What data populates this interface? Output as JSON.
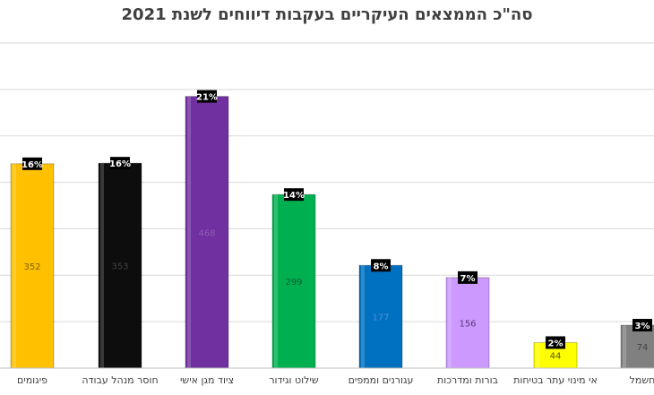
{
  "chart_data": {
    "type": "bar",
    "title": "סה\"כ הממצאים העיקריים בעקבות דיווחים לשנת 2021",
    "xlabel": "",
    "ylabel": "",
    "grid": true,
    "legend": "none",
    "categories": [
      "פיגומים",
      "חוסר מנהל עבודה",
      "ציוד מגן אישי",
      "שילוט וגידור",
      "עגורנים וממפים",
      "בורות ומדרכות",
      "אי מינוי עתר בטיחות",
      "חשמל"
    ],
    "values": [
      352,
      353,
      468,
      299,
      177,
      156,
      44,
      74
    ],
    "value_labels": [
      "352",
      "353",
      "468",
      "299",
      "177",
      "156",
      "44",
      "74"
    ],
    "percent_labels": [
      "16%",
      "16%",
      "21%",
      "14%",
      "8%",
      "7%",
      "2%",
      "3%"
    ],
    "colors": [
      "#FFC000",
      "#0D0D0D",
      "#7030A0",
      "#00B050",
      "#0070C0",
      "#CC99FF",
      "#FFFF00",
      "#808080"
    ],
    "value_label_colors": [
      "#7F6000",
      "#404040",
      "#8E5CB5",
      "#00602C",
      "#4A90D9",
      "#5A3A7A",
      "#5A5A00",
      "#404040"
    ],
    "ylim": [
      0,
      560
    ]
  }
}
